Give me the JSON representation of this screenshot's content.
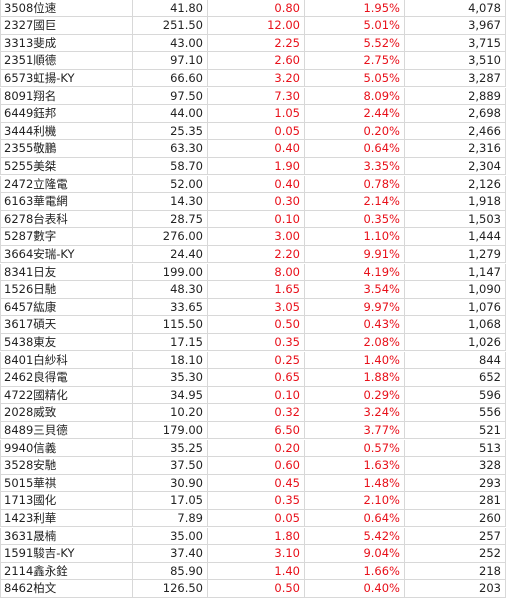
{
  "table": {
    "rows": [
      [
        "3508位速",
        "41.80",
        "0.80",
        "1.95%",
        "4,078"
      ],
      [
        "2327國巨",
        "251.50",
        "12.00",
        "5.01%",
        "3,967"
      ],
      [
        "3313斐成",
        "43.00",
        "2.25",
        "5.52%",
        "3,715"
      ],
      [
        "2351順德",
        "97.10",
        "2.60",
        "2.75%",
        "3,510"
      ],
      [
        "6573虹揚-KY",
        "66.60",
        "3.20",
        "5.05%",
        "3,287"
      ],
      [
        "8091翔名",
        "97.50",
        "7.30",
        "8.09%",
        "2,889"
      ],
      [
        "6449鈺邦",
        "44.00",
        "1.05",
        "2.44%",
        "2,698"
      ],
      [
        "3444利機",
        "25.35",
        "0.05",
        "0.20%",
        "2,466"
      ],
      [
        "2355敬鵬",
        "63.30",
        "0.40",
        "0.64%",
        "2,316"
      ],
      [
        "5255美桀",
        "58.70",
        "1.90",
        "3.35%",
        "2,304"
      ],
      [
        "2472立隆電",
        "52.00",
        "0.40",
        "0.78%",
        "2,126"
      ],
      [
        "6163華電網",
        "14.30",
        "0.30",
        "2.14%",
        "1,918"
      ],
      [
        "6278台表科",
        "28.75",
        "0.10",
        "0.35%",
        "1,503"
      ],
      [
        "5287數字",
        "276.00",
        "3.00",
        "1.10%",
        "1,444"
      ],
      [
        "3664安瑞-KY",
        "24.40",
        "2.20",
        "9.91%",
        "1,279"
      ],
      [
        "8341日友",
        "199.00",
        "8.00",
        "4.19%",
        "1,147"
      ],
      [
        "1526日馳",
        "48.30",
        "1.65",
        "3.54%",
        "1,090"
      ],
      [
        "6457紘康",
        "33.65",
        "3.05",
        "9.97%",
        "1,076"
      ],
      [
        "3617碩天",
        "115.50",
        "0.50",
        "0.43%",
        "1,068"
      ],
      [
        "5438東友",
        "17.15",
        "0.35",
        "2.08%",
        "1,026"
      ],
      [
        "8401白紗科",
        "18.10",
        "0.25",
        "1.40%",
        "844"
      ],
      [
        "2462良得電",
        "35.30",
        "0.65",
        "1.88%",
        "652"
      ],
      [
        "4722國精化",
        "34.95",
        "0.10",
        "0.29%",
        "596"
      ],
      [
        "2028威致",
        "10.20",
        "0.32",
        "3.24%",
        "556"
      ],
      [
        "8489三貝德",
        "179.00",
        "6.50",
        "3.77%",
        "521"
      ],
      [
        "9940信義",
        "35.25",
        "0.20",
        "0.57%",
        "513"
      ],
      [
        "3528安馳",
        "37.50",
        "0.60",
        "1.63%",
        "328"
      ],
      [
        "5015華祺",
        "30.90",
        "0.45",
        "1.48%",
        "293"
      ],
      [
        "1713國化",
        "17.05",
        "0.35",
        "2.10%",
        "281"
      ],
      [
        "1423利華",
        "7.89",
        "0.05",
        "0.64%",
        "260"
      ],
      [
        "3631晟楠",
        "35.00",
        "1.80",
        "5.42%",
        "257"
      ],
      [
        "1591駿吉-KY",
        "37.40",
        "3.10",
        "9.04%",
        "252"
      ],
      [
        "2114鑫永銓",
        "85.90",
        "1.40",
        "1.66%",
        "218"
      ],
      [
        "8462柏文",
        "126.50",
        "0.50",
        "0.40%",
        "203"
      ]
    ]
  }
}
